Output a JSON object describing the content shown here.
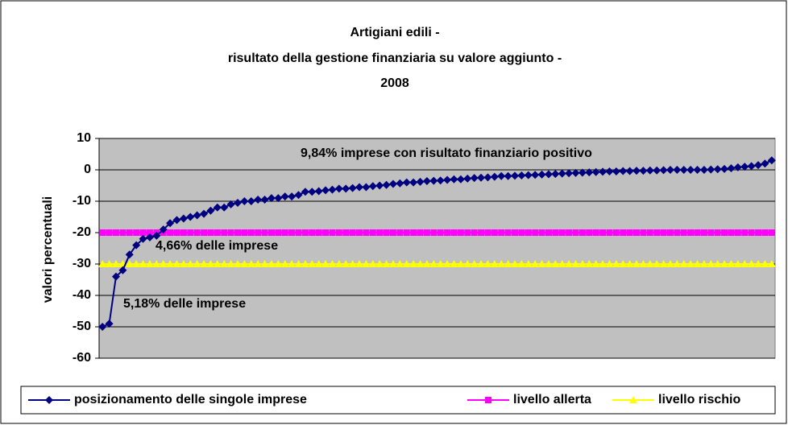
{
  "chart_data": {
    "type": "line",
    "title_lines": [
      "Artigiani edili -",
      "risultato della gestione finanziaria su valore aggiunto  -",
      "2008"
    ],
    "ylabel": "valori percentuali",
    "ylim": [
      -60,
      10
    ],
    "yticks": [
      -60,
      -50,
      -40,
      -30,
      -20,
      -10,
      0,
      10
    ],
    "grid": true,
    "annotations": [
      "9,84% imprese con risultato finanziario positivo",
      "4,66% delle imprese",
      "5,18% delle imprese"
    ],
    "legend": "bottom",
    "series": [
      {
        "name": "posizionamento delle singole imprese",
        "color": "#000080",
        "marker": "diamond",
        "values": [
          -50,
          -49,
          -34,
          -32,
          -27,
          -24,
          -22,
          -21.5,
          -21,
          -19,
          -17,
          -16,
          -15.5,
          -15,
          -14.5,
          -14,
          -13,
          -12,
          -12,
          -11,
          -10.5,
          -10,
          -10,
          -9.5,
          -9.5,
          -9,
          -9,
          -8.5,
          -8.5,
          -8,
          -7,
          -7,
          -6.8,
          -6.5,
          -6.3,
          -6,
          -6,
          -5.8,
          -5.5,
          -5.5,
          -5.2,
          -5,
          -4.8,
          -4.5,
          -4.3,
          -4,
          -4,
          -3.8,
          -3.6,
          -3.5,
          -3.4,
          -3.2,
          -3,
          -3,
          -2.8,
          -2.6,
          -2.5,
          -2.4,
          -2.2,
          -2,
          -2,
          -1.9,
          -1.8,
          -1.7,
          -1.6,
          -1.5,
          -1.4,
          -1.3,
          -1.2,
          -1.1,
          -1,
          -0.9,
          -0.8,
          -0.7,
          -0.6,
          -0.5,
          -0.5,
          -0.4,
          -0.4,
          -0.3,
          -0.3,
          -0.2,
          -0.2,
          -0.1,
          0,
          0,
          0,
          0,
          0,
          0,
          0.1,
          0.2,
          0.3,
          0.5,
          0.8,
          1,
          1.2,
          1.5,
          2,
          3
        ]
      },
      {
        "name": "livello allerta",
        "color": "#ff00ff",
        "marker": "square",
        "values": [
          -20,
          -20,
          -20,
          -20,
          -20,
          -20,
          -20,
          -20,
          -20,
          -20,
          -20,
          -20,
          -20,
          -20,
          -20,
          -20,
          -20,
          -20,
          -20,
          -20,
          -20,
          -20,
          -20,
          -20,
          -20,
          -20,
          -20,
          -20,
          -20,
          -20,
          -20,
          -20,
          -20,
          -20,
          -20,
          -20,
          -20,
          -20,
          -20,
          -20,
          -20,
          -20,
          -20,
          -20,
          -20,
          -20,
          -20,
          -20,
          -20,
          -20,
          -20,
          -20,
          -20,
          -20,
          -20,
          -20,
          -20,
          -20,
          -20,
          -20,
          -20,
          -20,
          -20,
          -20,
          -20,
          -20,
          -20,
          -20,
          -20,
          -20,
          -20,
          -20,
          -20,
          -20,
          -20,
          -20,
          -20,
          -20,
          -20,
          -20,
          -20,
          -20,
          -20,
          -20,
          -20,
          -20,
          -20,
          -20,
          -20,
          -20,
          -20,
          -20,
          -20,
          -20,
          -20,
          -20,
          -20,
          -20,
          -20,
          -20
        ]
      },
      {
        "name": "livello rischio",
        "color": "#ffff00",
        "marker": "triangle",
        "values": [
          -30,
          -30,
          -30,
          -30,
          -30,
          -30,
          -30,
          -30,
          -30,
          -30,
          -30,
          -30,
          -30,
          -30,
          -30,
          -30,
          -30,
          -30,
          -30,
          -30,
          -30,
          -30,
          -30,
          -30,
          -30,
          -30,
          -30,
          -30,
          -30,
          -30,
          -30,
          -30,
          -30,
          -30,
          -30,
          -30,
          -30,
          -30,
          -30,
          -30,
          -30,
          -30,
          -30,
          -30,
          -30,
          -30,
          -30,
          -30,
          -30,
          -30,
          -30,
          -30,
          -30,
          -30,
          -30,
          -30,
          -30,
          -30,
          -30,
          -30,
          -30,
          -30,
          -30,
          -30,
          -30,
          -30,
          -30,
          -30,
          -30,
          -30,
          -30,
          -30,
          -30,
          -30,
          -30,
          -30,
          -30,
          -30,
          -30,
          -30,
          -30,
          -30,
          -30,
          -30,
          -30,
          -30,
          -30,
          -30,
          -30,
          -30,
          -30,
          -30,
          -30,
          -30,
          -30,
          -30,
          -30,
          -30,
          -30,
          -30
        ]
      }
    ]
  }
}
